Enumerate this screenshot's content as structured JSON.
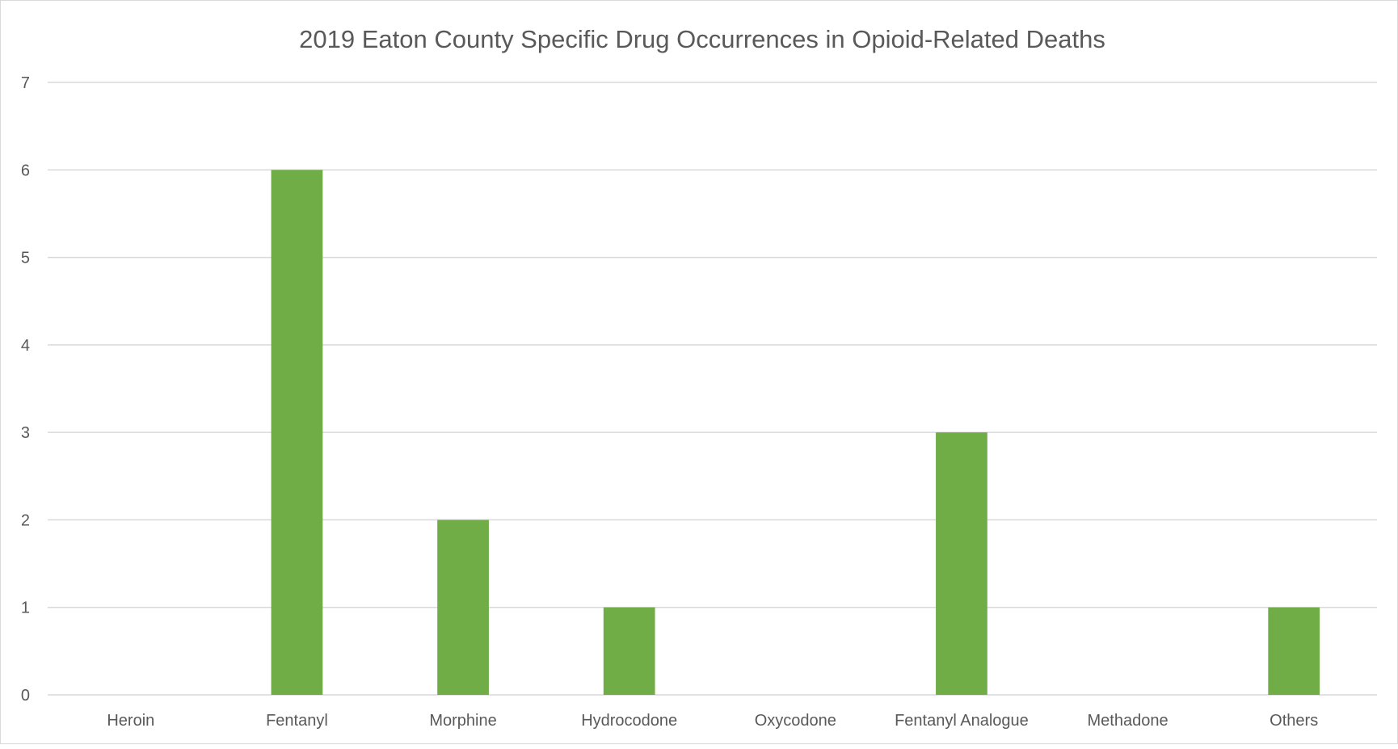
{
  "chart_data": {
    "type": "bar",
    "title": "2019 Eaton County Specific Drug Occurrences in Opioid-Related Deaths",
    "xlabel": "",
    "ylabel": "",
    "categories": [
      "Heroin",
      "Fentanyl",
      "Morphine",
      "Hydrocodone",
      "Oxycodone",
      "Fentanyl Analogue",
      "Methadone",
      "Others"
    ],
    "values": [
      0,
      6,
      2,
      1,
      0,
      3,
      0,
      1
    ],
    "ylim": [
      0,
      7
    ],
    "yticks": [
      "0",
      "1",
      "2",
      "3",
      "4",
      "5",
      "6",
      "7"
    ],
    "grid": true,
    "legend": "none",
    "bar_color": "#70AD47"
  }
}
